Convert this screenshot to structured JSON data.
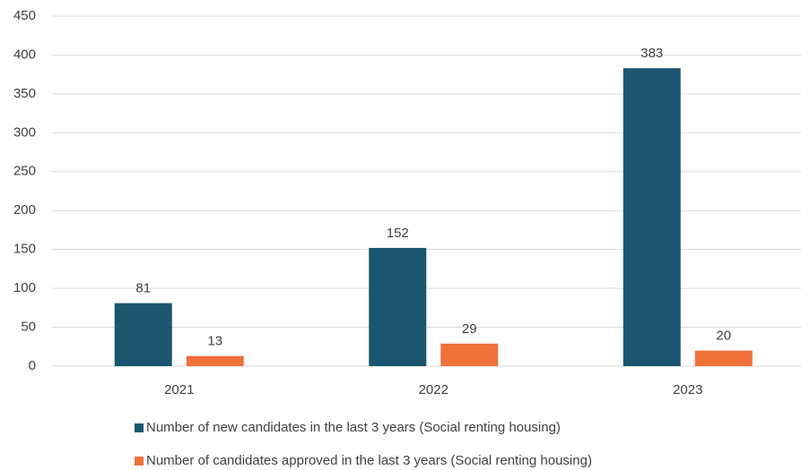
{
  "chart_data": {
    "type": "bar",
    "categories": [
      "2021",
      "2022",
      "2023"
    ],
    "series": [
      {
        "name": "Number of new candidates in the last 3 years (Social renting housing)",
        "color": "#1a5670",
        "values": [
          81,
          152,
          383
        ]
      },
      {
        "name": "Number of candidates approved in the last 3 years (Social renting housing)",
        "color": "#f0703a",
        "values": [
          13,
          29,
          20
        ]
      }
    ],
    "ylim": [
      0,
      450
    ],
    "yticks": [
      0,
      50,
      100,
      150,
      200,
      250,
      300,
      350,
      400,
      450
    ],
    "grid": true,
    "legend": "bottom",
    "data_labels": true
  }
}
